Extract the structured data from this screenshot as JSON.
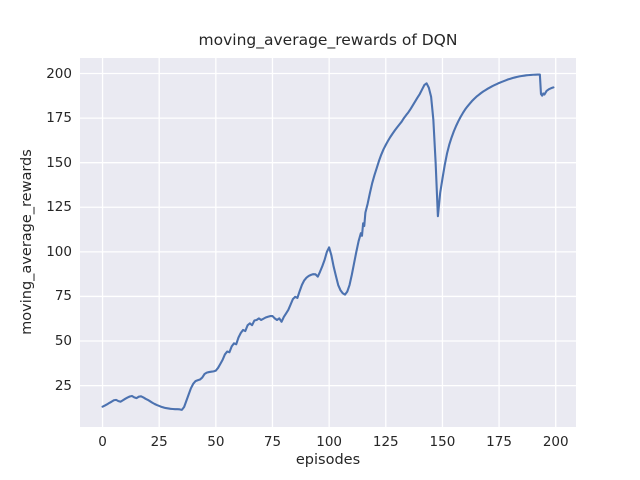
{
  "chart_data": {
    "type": "line",
    "title": "moving_average_rewards of DQN",
    "xlabel": "episodes",
    "ylabel": "moving_average_rewards",
    "x_ticks": [
      0,
      25,
      50,
      75,
      100,
      125,
      150,
      175,
      200
    ],
    "y_ticks": [
      25,
      50,
      75,
      100,
      125,
      150,
      175,
      200
    ],
    "xlim": [
      -9.95,
      208.95
    ],
    "ylim": [
      1.8,
      208.7
    ],
    "grid": true,
    "legend_position": "none",
    "style": "seaborn-darkgrid",
    "colors": {
      "line": "#4C72B0",
      "axes_background": "#EAEAF2",
      "grid": "#FFFFFF",
      "text": "#262626",
      "figure_background": "#FFFFFF"
    },
    "series": [
      {
        "name": "moving_average_rewards",
        "points": [
          [
            0,
            13.2
          ],
          [
            1,
            13.8
          ],
          [
            2,
            14.5
          ],
          [
            3,
            15.3
          ],
          [
            4,
            16.0
          ],
          [
            5,
            16.8
          ],
          [
            6,
            17.0
          ],
          [
            7,
            16.3
          ],
          [
            8,
            16.0
          ],
          [
            9,
            16.8
          ],
          [
            10,
            17.6
          ],
          [
            11,
            18.3
          ],
          [
            12,
            18.9
          ],
          [
            13,
            19.2
          ],
          [
            14,
            18.4
          ],
          [
            15,
            18.0
          ],
          [
            16,
            18.8
          ],
          [
            17,
            19.0
          ],
          [
            18,
            18.4
          ],
          [
            19,
            17.6
          ],
          [
            20,
            17.0
          ],
          [
            21,
            16.2
          ],
          [
            22,
            15.4
          ],
          [
            23,
            14.7
          ],
          [
            24,
            14.1
          ],
          [
            25,
            13.6
          ],
          [
            26,
            13.1
          ],
          [
            27,
            12.7
          ],
          [
            28,
            12.4
          ],
          [
            29,
            12.2
          ],
          [
            30,
            12.0
          ],
          [
            31,
            11.9
          ],
          [
            32,
            11.8
          ],
          [
            33,
            11.8
          ],
          [
            34,
            11.7
          ],
          [
            35,
            11.4
          ],
          [
            36,
            13.0
          ],
          [
            37,
            16.5
          ],
          [
            38,
            20.0
          ],
          [
            39,
            23.5
          ],
          [
            40,
            26.0
          ],
          [
            41,
            27.5
          ],
          [
            42,
            28.0
          ],
          [
            43,
            28.4
          ],
          [
            44,
            29.5
          ],
          [
            45,
            31.5
          ],
          [
            46,
            32.3
          ],
          [
            47,
            32.6
          ],
          [
            48,
            32.8
          ],
          [
            49,
            33.0
          ],
          [
            50,
            33.4
          ],
          [
            51,
            35.0
          ],
          [
            52,
            37.2
          ],
          [
            53,
            39.5
          ],
          [
            54,
            42.5
          ],
          [
            55,
            44.1
          ],
          [
            56,
            43.7
          ],
          [
            57,
            47.0
          ],
          [
            58,
            48.7
          ],
          [
            59,
            48.2
          ],
          [
            60,
            52.0
          ],
          [
            61,
            54.5
          ],
          [
            62,
            56.2
          ],
          [
            63,
            55.6
          ],
          [
            64,
            58.8
          ],
          [
            65,
            59.9
          ],
          [
            66,
            58.9
          ],
          [
            67,
            61.5
          ],
          [
            68,
            61.8
          ],
          [
            69,
            62.7
          ],
          [
            70,
            61.8
          ],
          [
            71,
            62.5
          ],
          [
            72,
            63.2
          ],
          [
            73,
            63.6
          ],
          [
            74,
            64.0
          ],
          [
            75,
            64.0
          ],
          [
            76,
            62.7
          ],
          [
            77,
            61.8
          ],
          [
            78,
            62.7
          ],
          [
            79,
            60.8
          ],
          [
            80,
            63.5
          ],
          [
            81,
            65.5
          ],
          [
            82,
            67.5
          ],
          [
            83,
            70.5
          ],
          [
            84,
            73.5
          ],
          [
            85,
            74.8
          ],
          [
            86,
            74.2
          ],
          [
            87,
            78.0
          ],
          [
            88,
            81.5
          ],
          [
            89,
            84.0
          ],
          [
            90,
            85.5
          ],
          [
            91,
            86.5
          ],
          [
            92,
            87.1
          ],
          [
            93,
            87.5
          ],
          [
            94,
            87.4
          ],
          [
            95,
            86.1
          ],
          [
            96,
            88.9
          ],
          [
            97,
            92.0
          ],
          [
            98,
            95.5
          ],
          [
            99,
            100.0
          ],
          [
            100,
            102.5
          ],
          [
            101,
            98.0
          ],
          [
            102,
            91.7
          ],
          [
            103,
            86.5
          ],
          [
            104,
            81.4
          ],
          [
            105,
            78.5
          ],
          [
            106,
            76.8
          ],
          [
            107,
            76.0
          ],
          [
            108,
            77.7
          ],
          [
            109,
            81.4
          ],
          [
            110,
            87.1
          ],
          [
            111,
            93.6
          ],
          [
            112,
            100.0
          ],
          [
            113,
            106.0
          ],
          [
            114,
            110.5
          ],
          [
            114.5,
            109.0
          ],
          [
            115,
            116.0
          ],
          [
            115.5,
            114.5
          ],
          [
            116,
            122.0
          ],
          [
            117,
            127.0
          ],
          [
            118,
            133.0
          ],
          [
            119,
            138.5
          ],
          [
            120,
            143.0
          ],
          [
            121,
            147.0
          ],
          [
            122,
            151.0
          ],
          [
            123,
            154.5
          ],
          [
            124,
            157.5
          ],
          [
            125,
            160.0
          ],
          [
            126,
            162.3
          ],
          [
            127,
            164.4
          ],
          [
            128,
            166.3
          ],
          [
            129,
            168.1
          ],
          [
            130,
            169.8
          ],
          [
            131,
            171.4
          ],
          [
            132,
            173.0
          ],
          [
            133,
            175.0
          ],
          [
            134,
            176.7
          ],
          [
            135,
            178.3
          ],
          [
            136,
            180.2
          ],
          [
            137,
            182.3
          ],
          [
            138,
            184.4
          ],
          [
            139,
            186.5
          ],
          [
            140,
            188.5
          ],
          [
            141,
            191.0
          ],
          [
            142,
            193.5
          ],
          [
            143,
            194.5
          ],
          [
            144,
            192.0
          ],
          [
            145,
            187.0
          ],
          [
            146,
            174.0
          ],
          [
            147,
            150.0
          ],
          [
            148,
            120.0
          ],
          [
            149,
            133.0
          ],
          [
            150,
            141.0
          ],
          [
            151,
            148.5
          ],
          [
            152,
            155.0
          ],
          [
            153,
            160.0
          ],
          [
            154,
            164.0
          ],
          [
            155,
            167.5
          ],
          [
            156,
            170.5
          ],
          [
            157,
            173.2
          ],
          [
            158,
            175.6
          ],
          [
            159,
            177.8
          ],
          [
            160,
            179.8
          ],
          [
            161,
            181.5
          ],
          [
            162,
            183.0
          ],
          [
            163,
            184.5
          ],
          [
            164,
            185.8
          ],
          [
            165,
            187.0
          ],
          [
            166,
            188.0
          ],
          [
            167,
            189.0
          ],
          [
            168,
            189.9
          ],
          [
            169,
            190.7
          ],
          [
            170,
            191.5
          ],
          [
            171,
            192.2
          ],
          [
            172,
            192.9
          ],
          [
            173,
            193.5
          ],
          [
            174,
            194.1
          ],
          [
            175,
            194.7
          ],
          [
            176,
            195.2
          ],
          [
            177,
            195.7
          ],
          [
            178,
            196.2
          ],
          [
            179,
            196.7
          ],
          [
            180,
            197.1
          ],
          [
            181,
            197.5
          ],
          [
            182,
            197.8
          ],
          [
            183,
            198.1
          ],
          [
            184,
            198.4
          ],
          [
            185,
            198.6
          ],
          [
            186,
            198.8
          ],
          [
            187,
            199.0
          ],
          [
            188,
            199.1
          ],
          [
            189,
            199.2
          ],
          [
            190,
            199.3
          ],
          [
            191,
            199.35
          ],
          [
            192,
            199.4
          ],
          [
            193,
            199.4
          ],
          [
            193.5,
            188.5
          ],
          [
            194,
            187.6
          ],
          [
            194.5,
            188.8
          ],
          [
            195,
            188.2
          ],
          [
            196,
            190.3
          ],
          [
            197,
            191.2
          ],
          [
            198,
            191.8
          ],
          [
            199,
            192.2
          ]
        ]
      }
    ]
  }
}
